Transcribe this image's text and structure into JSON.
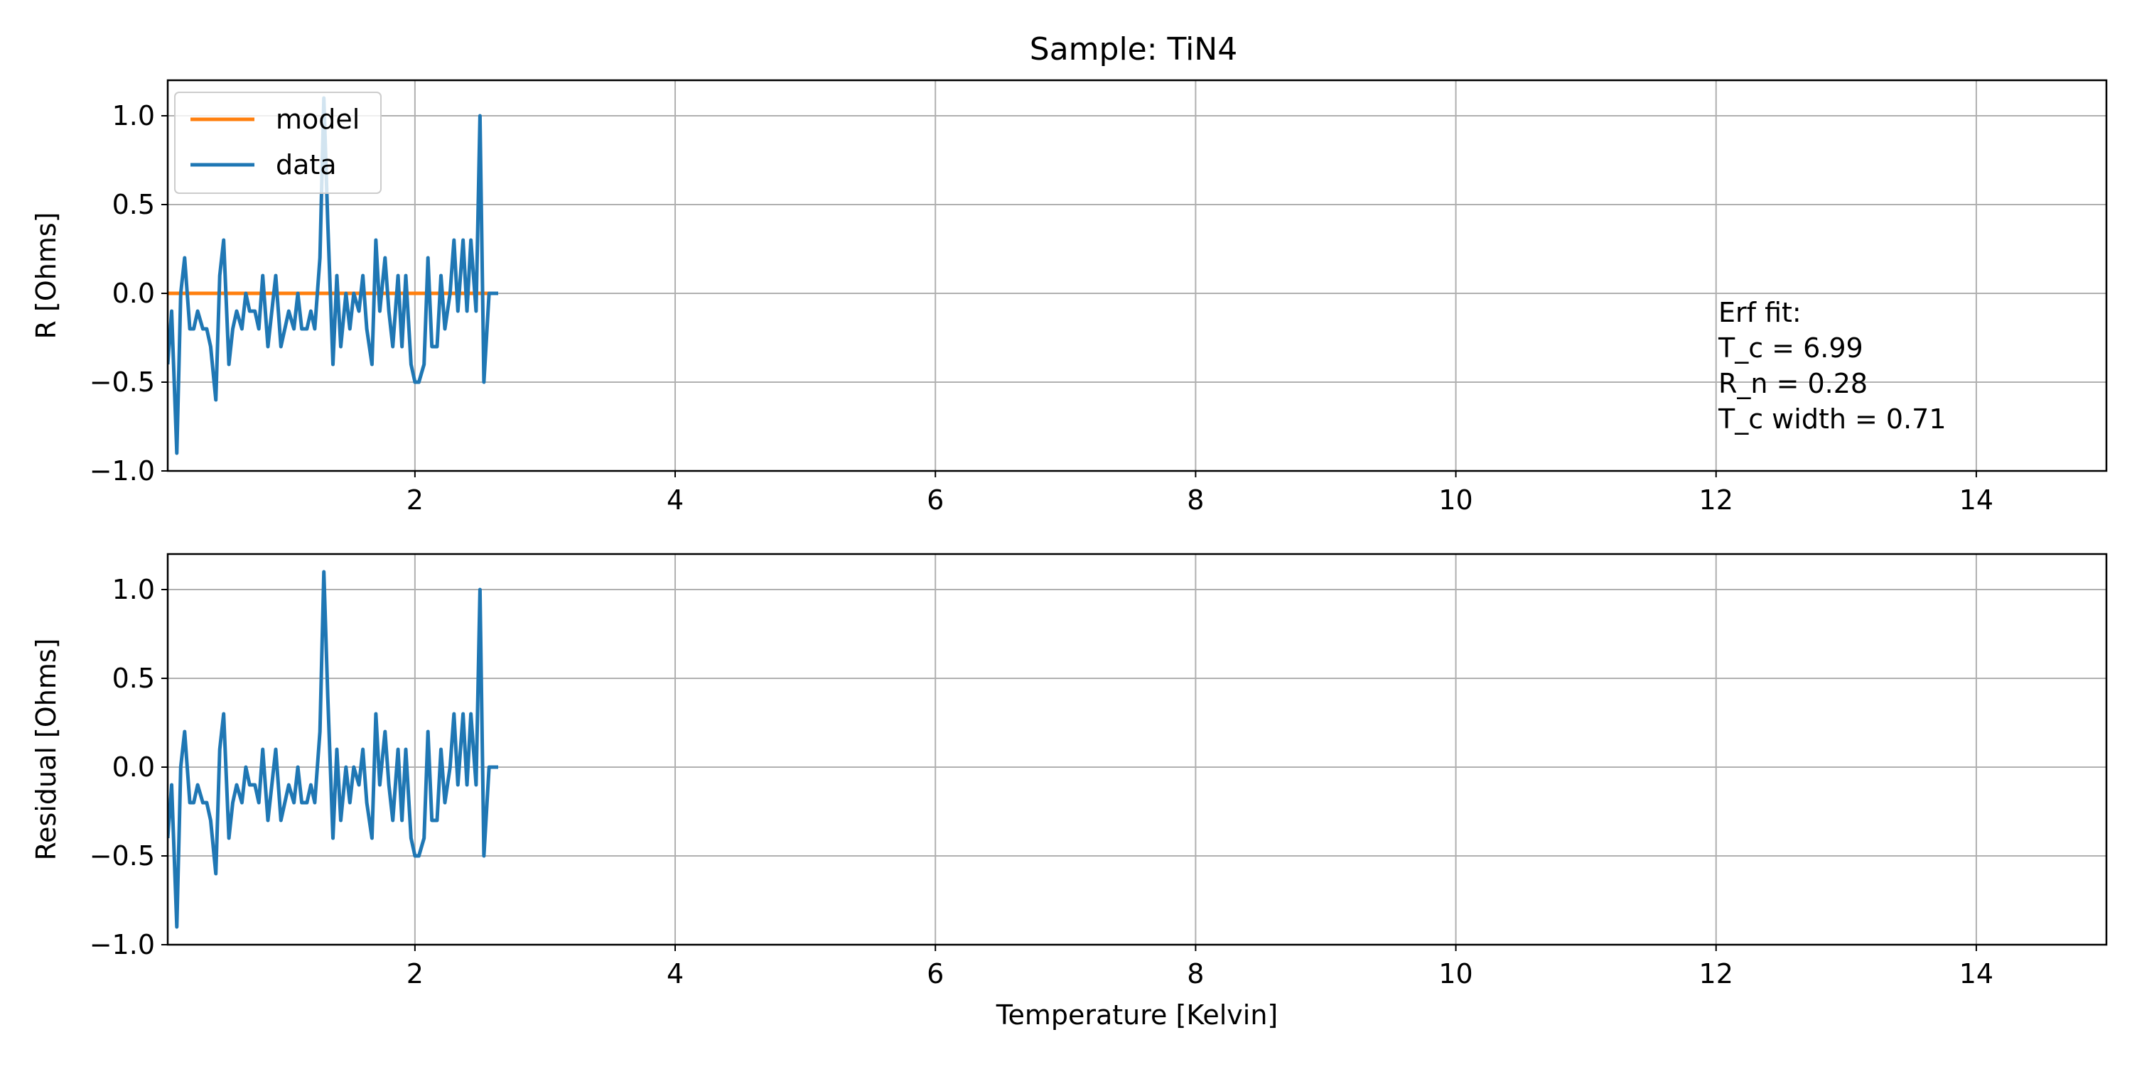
{
  "chart_data": [
    {
      "type": "line",
      "title": "Sample: TiN4",
      "xlabel": "",
      "ylabel": "R [Ohms]",
      "xlim": [
        0.1,
        15.0
      ],
      "ylim": [
        -1.0,
        1.2
      ],
      "xticks": [
        2,
        4,
        6,
        8,
        10,
        12,
        14
      ],
      "xtick_labels": [
        "2",
        "4",
        "6",
        "8",
        "10",
        "12",
        "14"
      ],
      "yticks": [
        -1.0,
        -0.5,
        0.0,
        0.5,
        1.0
      ],
      "ytick_labels": [
        "−1.0",
        "−0.5",
        "0.0",
        "0.5",
        "1.0"
      ],
      "grid": true,
      "legend_position": "top-left",
      "annotation": [
        "Erf fit:",
        "T_c = 6.99",
        "R_n = 0.28",
        "T_c width = 0.71"
      ],
      "series": [
        {
          "name": "model",
          "color": "#ff7f0e",
          "x": [
            0.1,
            2.64
          ],
          "y": [
            0.0,
            0.0
          ]
        },
        {
          "name": "data",
          "color": "#1f77b4",
          "x": [
            0.1,
            0.13,
            0.17,
            0.2,
            0.23,
            0.27,
            0.3,
            0.33,
            0.37,
            0.4,
            0.43,
            0.47,
            0.5,
            0.53,
            0.57,
            0.6,
            0.63,
            0.67,
            0.7,
            0.73,
            0.77,
            0.8,
            0.83,
            0.87,
            0.9,
            0.93,
            0.97,
            1.0,
            1.03,
            1.07,
            1.1,
            1.13,
            1.17,
            1.2,
            1.23,
            1.27,
            1.3,
            1.33,
            1.37,
            1.4,
            1.43,
            1.47,
            1.5,
            1.53,
            1.57,
            1.6,
            1.63,
            1.67,
            1.7,
            1.73,
            1.77,
            1.8,
            1.83,
            1.87,
            1.9,
            1.93,
            1.97,
            2.0,
            2.03,
            2.07,
            2.1,
            2.13,
            2.17,
            2.2,
            2.23,
            2.27,
            2.3,
            2.33,
            2.37,
            2.4,
            2.43,
            2.47,
            2.5,
            2.53,
            2.57,
            2.6,
            2.62,
            2.63,
            2.64,
            2.64
          ],
          "y": [
            -0.4,
            -0.1,
            -0.9,
            0.0,
            0.2,
            -0.2,
            -0.2,
            -0.1,
            -0.2,
            -0.2,
            -0.3,
            -0.6,
            0.1,
            0.3,
            -0.4,
            -0.2,
            -0.1,
            -0.2,
            0.0,
            -0.1,
            -0.1,
            -0.2,
            0.1,
            -0.3,
            -0.1,
            0.1,
            -0.3,
            -0.2,
            -0.1,
            -0.2,
            0.0,
            -0.2,
            -0.2,
            -0.1,
            -0.2,
            0.2,
            1.1,
            0.4,
            -0.4,
            0.1,
            -0.3,
            0.0,
            -0.2,
            0.0,
            -0.1,
            0.1,
            -0.2,
            -0.4,
            0.3,
            -0.1,
            0.2,
            -0.1,
            -0.3,
            0.1,
            -0.3,
            0.1,
            -0.4,
            -0.5,
            -0.5,
            -0.4,
            0.2,
            -0.3,
            -0.3,
            0.1,
            -0.2,
            0.0,
            0.3,
            -0.1,
            0.3,
            -0.1,
            0.3,
            -0.1,
            1.0,
            -0.5,
            0.0,
            0.0,
            0.0,
            0.0,
            0.0,
            0.0
          ]
        }
      ]
    },
    {
      "type": "line",
      "title": "",
      "xlabel": "Temperature [Kelvin]",
      "ylabel": "Residual [Ohms]",
      "xlim": [
        0.1,
        15.0
      ],
      "ylim": [
        -1.0,
        1.2
      ],
      "xticks": [
        2,
        4,
        6,
        8,
        10,
        12,
        14
      ],
      "xtick_labels": [
        "2",
        "4",
        "6",
        "8",
        "10",
        "12",
        "14"
      ],
      "yticks": [
        -1.0,
        -0.5,
        0.0,
        0.5,
        1.0
      ],
      "ytick_labels": [
        "−1.0",
        "−0.5",
        "0.0",
        "0.5",
        "1.0"
      ],
      "grid": true,
      "series": [
        {
          "color": "#1f77b4",
          "x": [
            0.1,
            0.13,
            0.17,
            0.2,
            0.23,
            0.27,
            0.3,
            0.33,
            0.37,
            0.4,
            0.43,
            0.47,
            0.5,
            0.53,
            0.57,
            0.6,
            0.63,
            0.67,
            0.7,
            0.73,
            0.77,
            0.8,
            0.83,
            0.87,
            0.9,
            0.93,
            0.97,
            1.0,
            1.03,
            1.07,
            1.1,
            1.13,
            1.17,
            1.2,
            1.23,
            1.27,
            1.3,
            1.33,
            1.37,
            1.4,
            1.43,
            1.47,
            1.5,
            1.53,
            1.57,
            1.6,
            1.63,
            1.67,
            1.7,
            1.73,
            1.77,
            1.8,
            1.83,
            1.87,
            1.9,
            1.93,
            1.97,
            2.0,
            2.03,
            2.07,
            2.1,
            2.13,
            2.17,
            2.2,
            2.23,
            2.27,
            2.3,
            2.33,
            2.37,
            2.4,
            2.43,
            2.47,
            2.5,
            2.53,
            2.57,
            2.6,
            2.62,
            2.63,
            2.64,
            2.64
          ],
          "y": [
            -0.4,
            -0.1,
            -0.9,
            0.0,
            0.2,
            -0.2,
            -0.2,
            -0.1,
            -0.2,
            -0.2,
            -0.3,
            -0.6,
            0.1,
            0.3,
            -0.4,
            -0.2,
            -0.1,
            -0.2,
            0.0,
            -0.1,
            -0.1,
            -0.2,
            0.1,
            -0.3,
            -0.1,
            0.1,
            -0.3,
            -0.2,
            -0.1,
            -0.2,
            0.0,
            -0.2,
            -0.2,
            -0.1,
            -0.2,
            0.2,
            1.1,
            0.4,
            -0.4,
            0.1,
            -0.3,
            0.0,
            -0.2,
            0.0,
            -0.1,
            0.1,
            -0.2,
            -0.4,
            0.3,
            -0.1,
            0.2,
            -0.1,
            -0.3,
            0.1,
            -0.3,
            0.1,
            -0.4,
            -0.5,
            -0.5,
            -0.4,
            0.2,
            -0.3,
            -0.3,
            0.1,
            -0.2,
            0.0,
            0.3,
            -0.1,
            0.3,
            -0.1,
            0.3,
            -0.1,
            1.0,
            -0.5,
            0.0,
            0.0,
            0.0,
            0.0,
            0.0,
            0.0
          ]
        }
      ]
    }
  ]
}
